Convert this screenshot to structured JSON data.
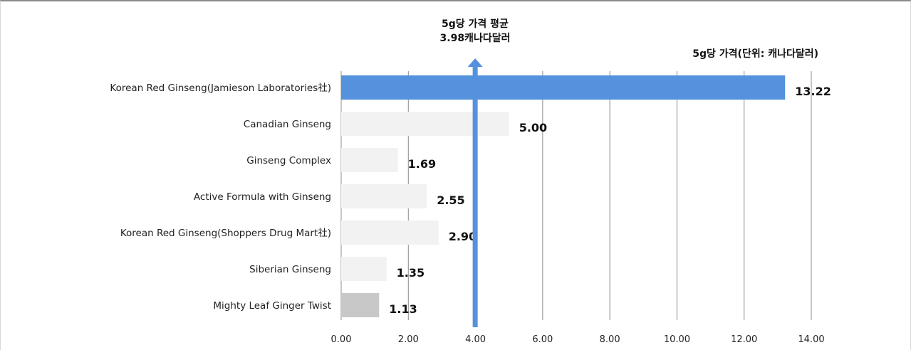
{
  "chart_data": {
    "type": "bar",
    "orientation": "horizontal",
    "title": "5g당 가격(단위: 캐나다달러)",
    "categories": [
      "Korean Red Ginseng(Jamieson Laboratories社)",
      "Canadian Ginseng",
      "Ginseng Complex",
      "Active Formula with Ginseng",
      "Korean Red Ginseng(Shoppers Drug Mart社)",
      "Siberian Ginseng",
      "Mighty Leaf Ginger Twist"
    ],
    "values": [
      13.22,
      5.0,
      1.69,
      2.55,
      2.9,
      1.35,
      1.13
    ],
    "value_labels": [
      "13.22",
      "5.00",
      "1.69",
      "2.55",
      "2.90",
      "1.35",
      "1.13"
    ],
    "bar_colors": [
      "#5591dc",
      "#f2f2f2",
      "#f2f2f2",
      "#f2f2f2",
      "#f2f2f2",
      "#f2f2f2",
      "#c8c8c8"
    ],
    "xlim": [
      0,
      14
    ],
    "x_ticks": [
      "0.00",
      "2.00",
      "4.00",
      "6.00",
      "8.00",
      "10.00",
      "12.00",
      "14.00"
    ],
    "grid": true,
    "average": {
      "value": 3.98,
      "line1": "5g당 가격 평균",
      "line2": "3.98캐나다달러",
      "color": "#5591dc"
    }
  }
}
